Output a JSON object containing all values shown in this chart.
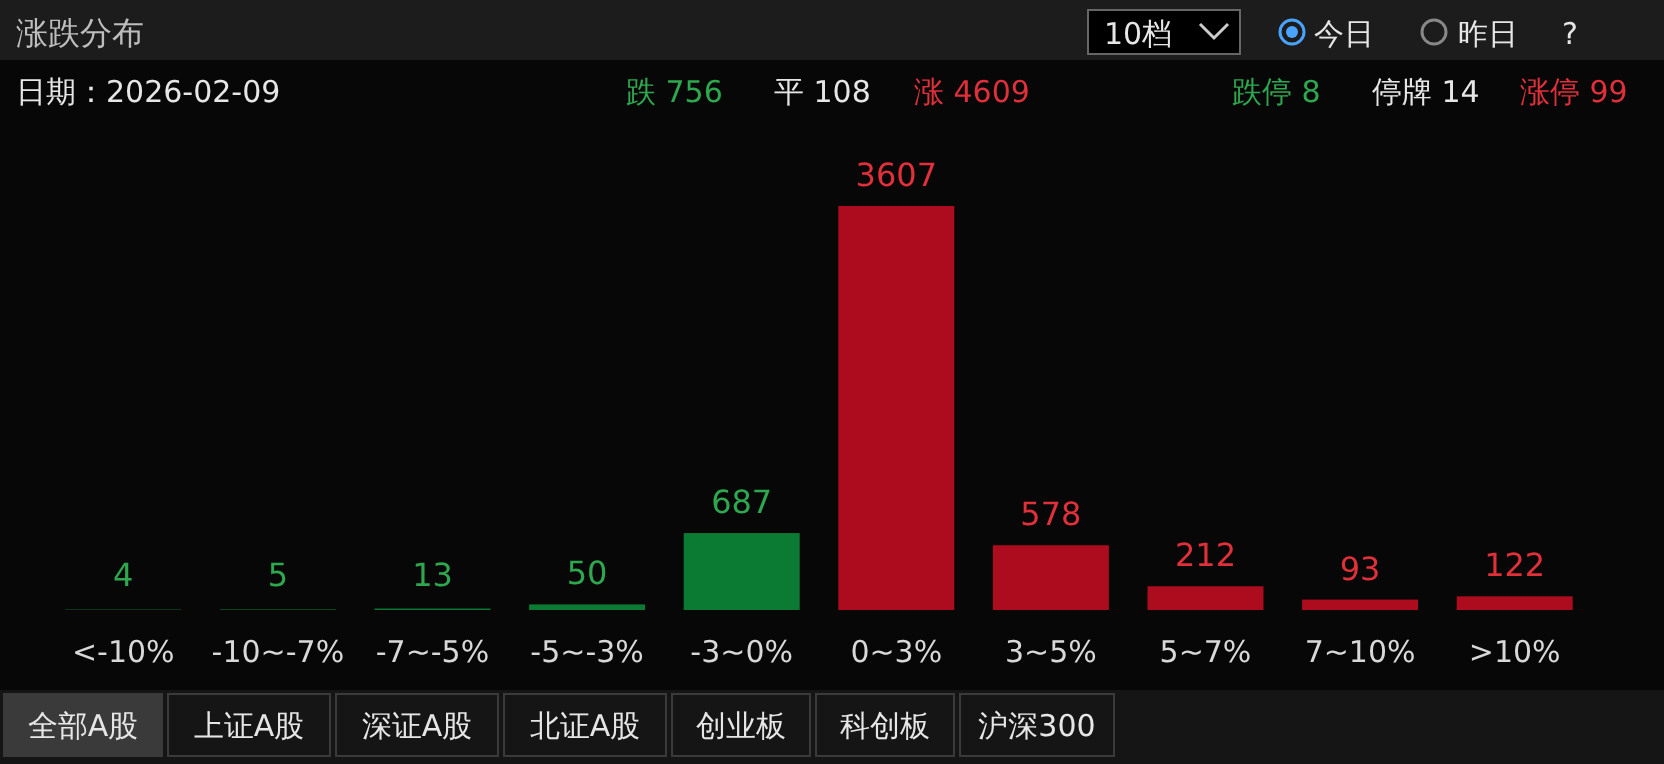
{
  "chart_data": {
    "type": "bar",
    "title": "涨跌分布",
    "subtitle": "日期：2026-02-09",
    "categories": [
      "<-10%",
      "-10~-7%",
      "-7~-5%",
      "-5~-3%",
      "-3~0%",
      "0~3%",
      "3~5%",
      "5~7%",
      "7~10%",
      ">10%"
    ],
    "values": [
      4,
      5,
      13,
      50,
      687,
      3607,
      578,
      212,
      93,
      122
    ],
    "colors": [
      "#0b7a33",
      "#0b7a33",
      "#0b7a33",
      "#0b7a33",
      "#0b7a33",
      "#ad0c1f",
      "#ad0c1f",
      "#ad0c1f",
      "#ad0c1f",
      "#ad0c1f"
    ],
    "data_labels": true,
    "annotations": [
      "10档",
      "今日",
      "昨日",
      "?",
      "跌 756",
      "平 108",
      "涨 4609",
      "跌停 8",
      "停牌 14",
      "涨停 99",
      "全部A股",
      "上证A股",
      "深证A股",
      "北证A股",
      "创业板",
      "科创板",
      "沪深300"
    ]
  }
}
